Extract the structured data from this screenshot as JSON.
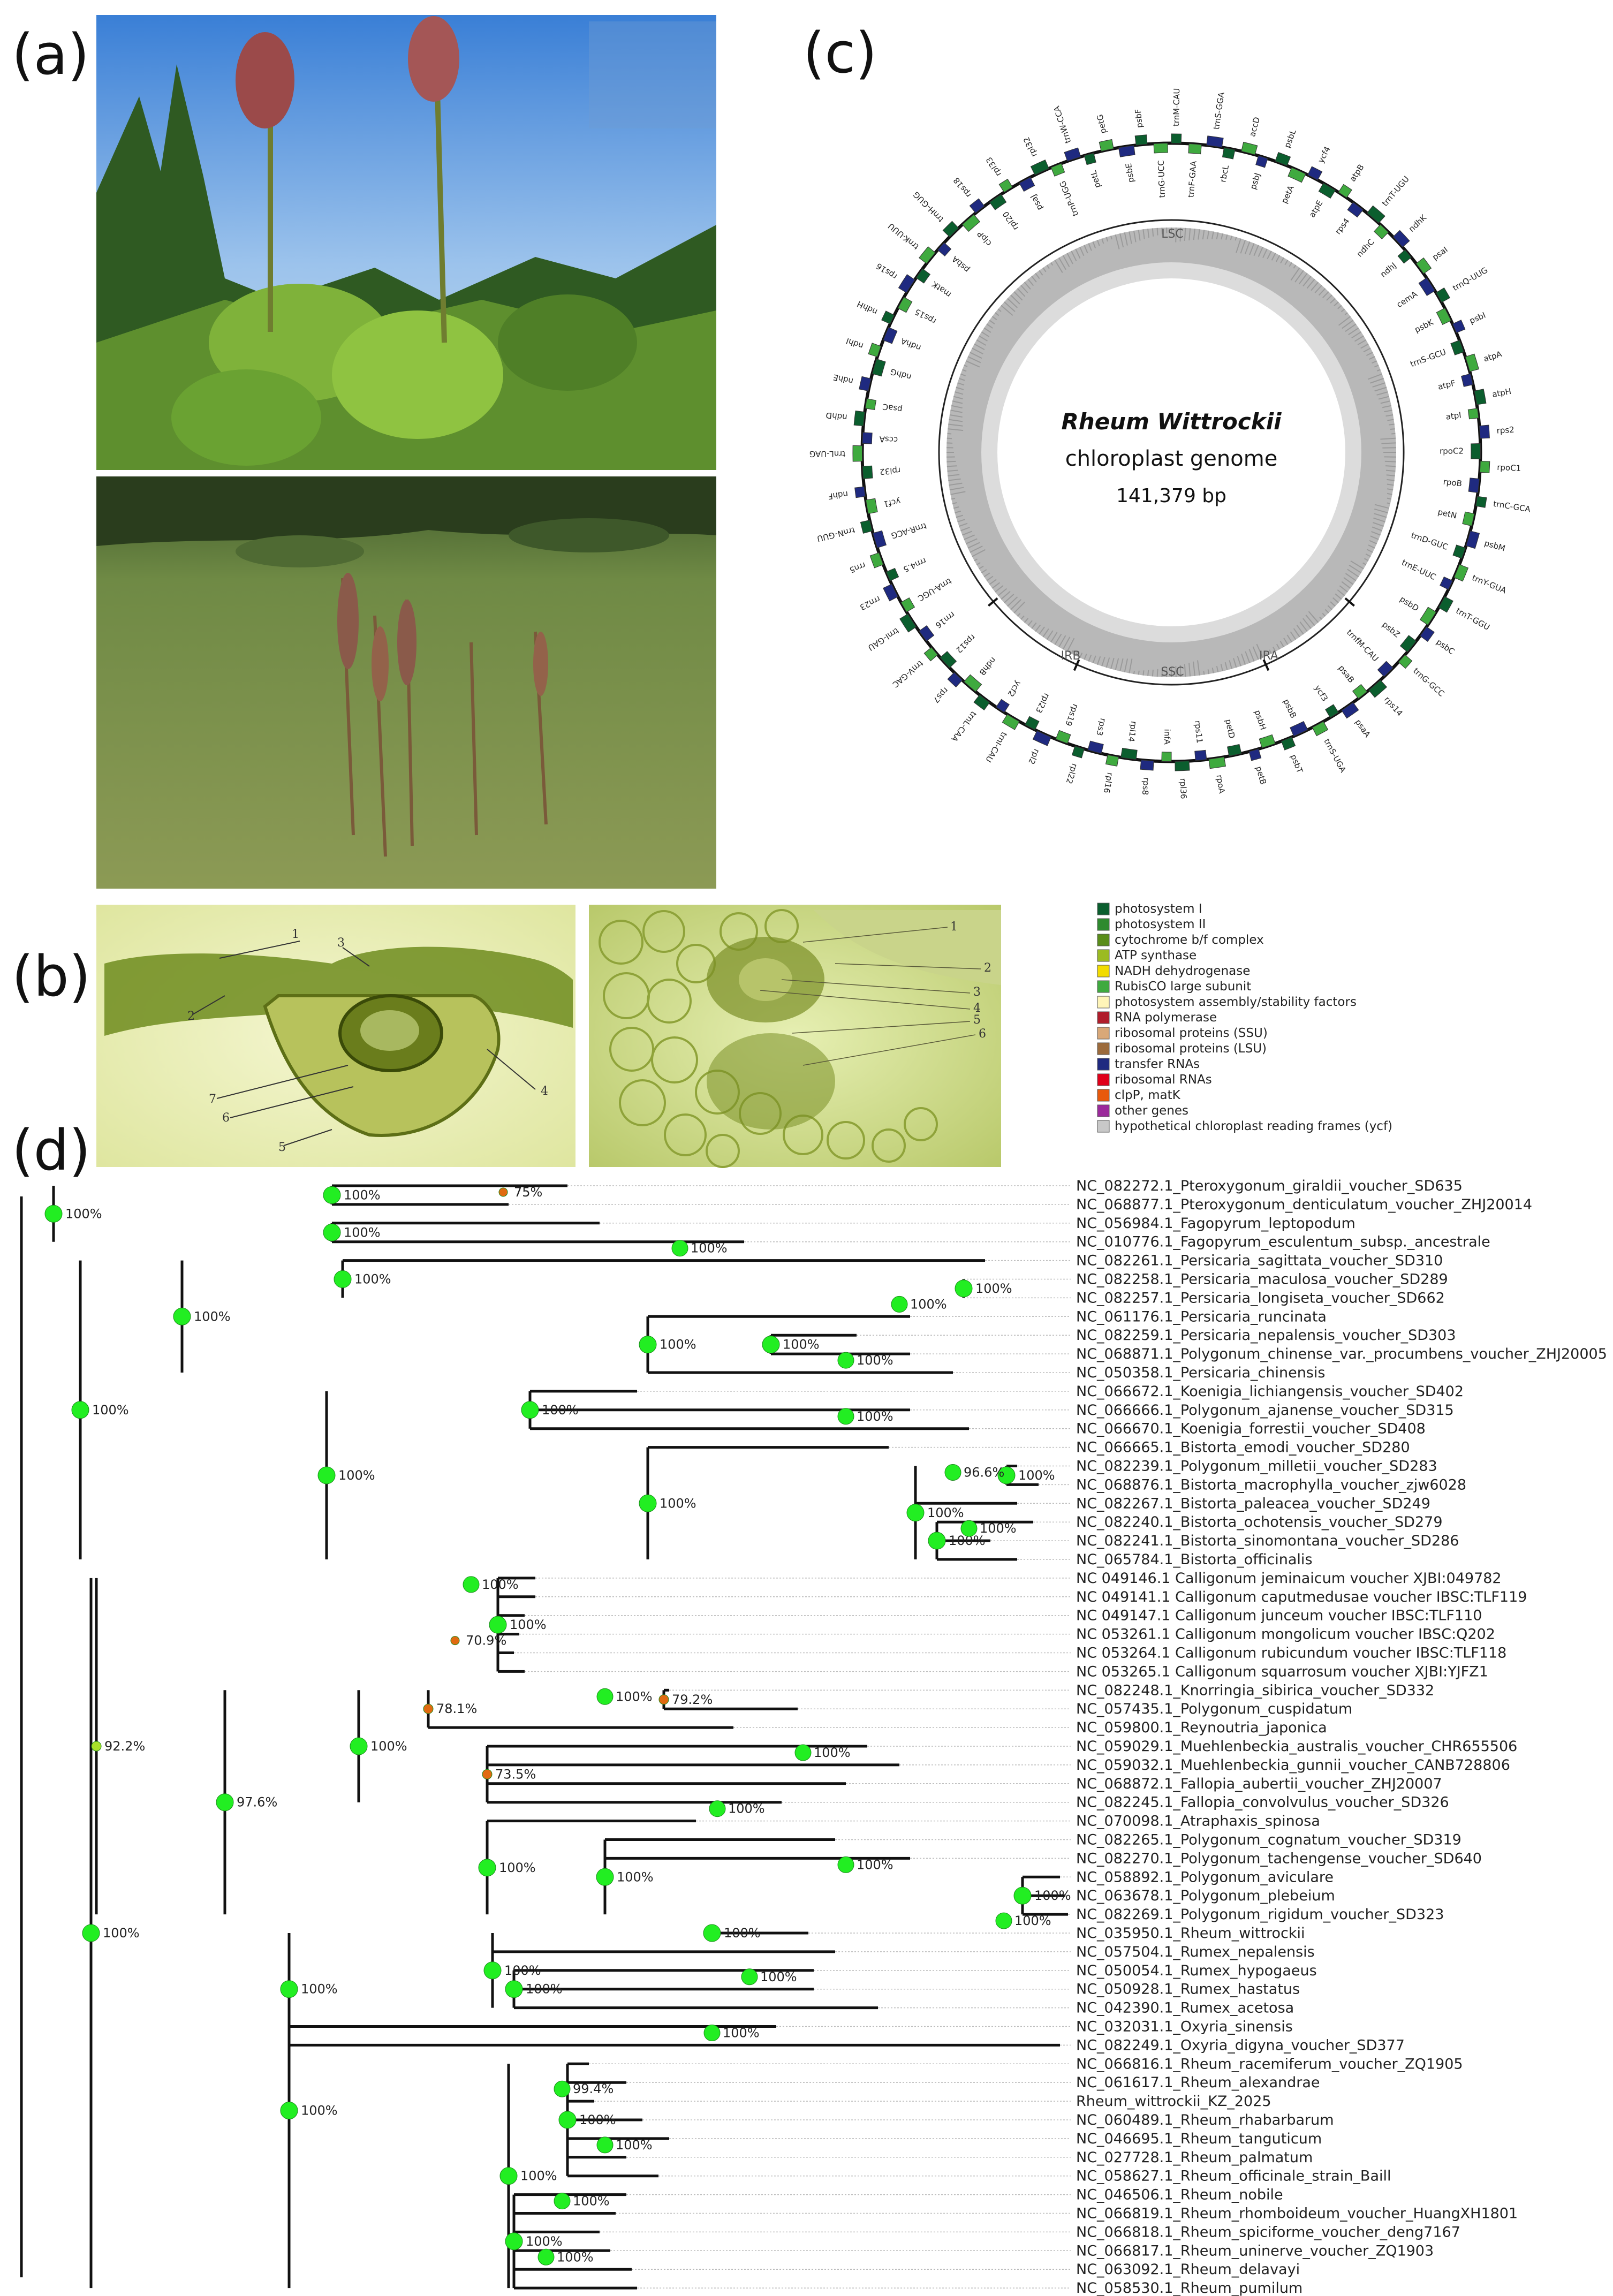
{
  "panel_labels": {
    "a": "(a)",
    "b": "(b)",
    "c": "(c)",
    "d": "(d)"
  },
  "genome_map": {
    "species": "Rheum Wittrockii",
    "subtitle": "chloroplast genome",
    "length": "141,379 bp",
    "regions": [
      "LSC",
      "IRB",
      "SSC",
      "IRA"
    ],
    "legend": [
      {
        "label": "photosystem I",
        "color": "#0b5e2e"
      },
      {
        "label": "photosystem II",
        "color": "#2f8a2f"
      },
      {
        "label": "cytochrome b/f complex",
        "color": "#5a8d1a"
      },
      {
        "label": "ATP synthase",
        "color": "#9bbb22"
      },
      {
        "label": "NADH dehydrogenase",
        "color": "#f2dc00"
      },
      {
        "label": "RubisCO large subunit",
        "color": "#3faa3f"
      },
      {
        "label": "photosystem assembly/stability factors",
        "color": "#fff5b8"
      },
      {
        "label": "RNA polymerase",
        "color": "#b01d2b"
      },
      {
        "label": "ribosomal proteins (SSU)",
        "color": "#d9a878"
      },
      {
        "label": "ribosomal proteins (LSU)",
        "color": "#9c6b3c"
      },
      {
        "label": "transfer RNAs",
        "color": "#1f2a80"
      },
      {
        "label": "ribosomal RNAs",
        "color": "#e0001a"
      },
      {
        "label": "clpP, matK",
        "color": "#e8590c"
      },
      {
        "label": "other genes",
        "color": "#9b2a9b"
      },
      {
        "label": "hypothetical chloroplast reading frames (ycf)",
        "color": "#c8c8c8"
      }
    ],
    "outer_gene_labels": [
      "trnM-CAU",
      "trnF-GAA",
      "trnS-GGA",
      "rbcL",
      "accD",
      "psbJ",
      "psbL",
      "petA",
      "ycf4",
      "atpE",
      "atpB",
      "rps4",
      "trnT-UGU",
      "ndhC",
      "ndhK",
      "ndhJ",
      "psaI",
      "cemA",
      "trnQ-UUG",
      "psbK",
      "psbI",
      "trnS-GCU",
      "atpA",
      "atpF",
      "atpH",
      "atpI",
      "rps2",
      "rpoC2",
      "rpoC1",
      "rpoB",
      "trnC-GCA",
      "petN",
      "psbM",
      "trnD-GUC",
      "trnY-GUA",
      "trnE-UUC",
      "trnT-GGU",
      "psbD",
      "psbC",
      "psbZ",
      "trnG-GCC",
      "trnfM-CAU",
      "rps14",
      "psaB",
      "psaA",
      "ycf3",
      "trnS-UGA",
      "psbB",
      "psbT",
      "psbH",
      "petB",
      "petD",
      "rpoA",
      "rps11",
      "rpl36",
      "infA",
      "rps8",
      "rpl14",
      "rpl16",
      "rps3",
      "rpl22",
      "rps19",
      "rpl2",
      "rpl23",
      "trnI-CAU",
      "ycf2",
      "trnL-CAA",
      "ndhB",
      "rps7",
      "rps12",
      "trnV-GAC",
      "rrn16",
      "trnI-GAU",
      "trnA-UGC",
      "rrn23",
      "rrn4.5",
      "rrn5",
      "trnR-ACG",
      "trnN-GUU",
      "ycf1",
      "ndhF",
      "rpl32",
      "trnL-UAG",
      "ccsA",
      "ndhD",
      "psaC",
      "ndhE",
      "ndhG",
      "ndhI",
      "ndhA",
      "ndhH",
      "rps15",
      "rps16",
      "matK",
      "trnK-UUU",
      "psbA",
      "trnH-GUG",
      "clpP",
      "rps18",
      "rpl20",
      "rpl33",
      "psaJ",
      "rpl32",
      "trnP-UGG",
      "trnW-CCA",
      "petL",
      "petG",
      "psbE",
      "psbF",
      "trnG-UCC"
    ]
  },
  "anatomy": {
    "left_numbers": [
      "1",
      "2",
      "3",
      "4",
      "5",
      "6",
      "7"
    ],
    "right_numbers": [
      "1",
      "2",
      "3",
      "4",
      "5",
      "6"
    ]
  },
  "tree": {
    "tips": [
      "NC_082272.1_Pteroxygonum_giraldii_voucher_SD635",
      "NC_068877.1_Pteroxygonum_denticulatum_voucher_ZHJ20014",
      "NC_056984.1_Fagopyrum_leptopodum",
      "NC_010776.1_Fagopyrum_esculentum_subsp._ancestrale",
      "NC_082261.1_Persicaria_sagittata_voucher_SD310",
      "NC_082258.1_Persicaria_maculosa_voucher_SD289",
      "NC_082257.1_Persicaria_longiseta_voucher_SD662",
      "NC_061176.1_Persicaria_runcinata",
      "NC_082259.1_Persicaria_nepalensis_voucher_SD303",
      "NC_068871.1_Polygonum_chinense_var._procumbens_voucher_ZHJ20005",
      "NC_050358.1_Persicaria_chinensis",
      "NC_066672.1_Koenigia_lichiangensis_voucher_SD402",
      "NC_066666.1_Polygonum_ajanense_voucher_SD315",
      "NC_066670.1_Koenigia_forrestii_voucher_SD408",
      "NC_066665.1_Bistorta_emodi_voucher_SD280",
      "NC_082239.1_Polygonum_milletii_voucher_SD283",
      "NC_068876.1_Bistorta_macrophylla_voucher_zjw6028",
      "NC_082267.1_Bistorta_paleacea_voucher_SD249",
      "NC_082240.1_Bistorta_ochotensis_voucher_SD279",
      "NC_082241.1_Bistorta_sinomontana_voucher_SD286",
      "NC_065784.1_Bistorta_officinalis",
      "NC 049146.1 Calligonum jeminaicum voucher XJBI:049782",
      "NC 049141.1 Calligonum caputmedusae voucher IBSC:TLF119",
      "NC 049147.1 Calligonum junceum voucher IBSC:TLF110",
      "NC 053261.1 Calligonum mongolicum voucher IBSC:Q202",
      "NC 053264.1 Calligonum rubicundum voucher IBSC:TLF118",
      "NC 053265.1 Calligonum squarrosum voucher XJBI:YJFZ1",
      "NC_082248.1_Knorringia_sibirica_voucher_SD332",
      "NC_057435.1_Polygonum_cuspidatum",
      "NC_059800.1_Reynoutria_japonica",
      "NC_059029.1_Muehlenbeckia_australis_voucher_CHR655506",
      "NC_059032.1_Muehlenbeckia_gunnii_voucher_CANB728806",
      "NC_068872.1_Fallopia_aubertii_voucher_ZHJ20007",
      "NC_082245.1_Fallopia_convolvulus_voucher_SD326",
      "NC_070098.1_Atraphaxis_spinosa",
      "NC_082265.1_Polygonum_cognatum_voucher_SD319",
      "NC_082270.1_Polygonum_tachengense_voucher_SD640",
      "NC_058892.1_Polygonum_aviculare",
      "NC_063678.1_Polygonum_plebeium",
      "NC_082269.1_Polygonum_rigidum_voucher_SD323",
      "NC_035950.1_Rheum_wittrockii",
      "NC_057504.1_Rumex_nepalensis",
      "NC_050054.1_Rumex_hypogaeus",
      "NC_050928.1_Rumex_hastatus",
      "NC_042390.1_Rumex_acetosa",
      "NC_032031.1_Oxyria_sinensis",
      "NC_082249.1_Oxyria_digyna_voucher_SD377",
      "NC_066816.1_Rheum_racemiferum_voucher_ZQ1905",
      "NC_061617.1_Rheum_alexandrae",
      "Rheum_wittrockii_KZ_2025",
      "NC_060489.1_Rheum_rhabarbarum",
      "NC_046695.1_Rheum_tanguticum",
      "NC_027728.1_Rheum_palmatum",
      "NC_058627.1_Rheum_officinale_strain_Baill",
      "NC_046506.1_Rheum_nobile",
      "NC_066819.1_Rheum_rhomboideum_voucher_HuangXH1801",
      "NC_066818.1_Rheum_spiciforme_voucher_deng7167",
      "NC_066817.1_Rheum_uninerve_voucher_ZQ1903",
      "NC_063092.1_Rheum_delavayi",
      "NC_058530.1_Rheum_pumilum"
    ],
    "highlight_tip": "Rheum_wittrockii_KZ_2025",
    "highlight_color": "#1a1ad6",
    "node_color": "#22ee22",
    "support_labels": [
      "100%",
      "100%",
      "100%",
      "100%",
      "100%",
      "100%",
      "100%",
      "100%",
      "100%",
      "100%",
      "100%",
      "100%",
      "100%",
      "100%",
      "100%",
      "100%",
      "92.2%",
      "100%",
      "97.6%",
      "100%",
      "78.1%",
      "73.5%",
      "79.2%",
      "100%",
      "100%",
      "100%",
      "100%",
      "100%",
      "100%",
      "100%",
      "100%",
      "100%",
      "100%",
      "100%",
      "100%",
      "100%",
      "99.4%",
      "100%",
      "100%",
      "100%",
      "75%",
      "100%",
      "100%",
      "100%",
      "100%",
      "96.6%",
      "100%",
      "100%",
      "70.9%",
      "100%",
      "100%",
      "100%",
      "100%",
      "100%"
    ]
  }
}
